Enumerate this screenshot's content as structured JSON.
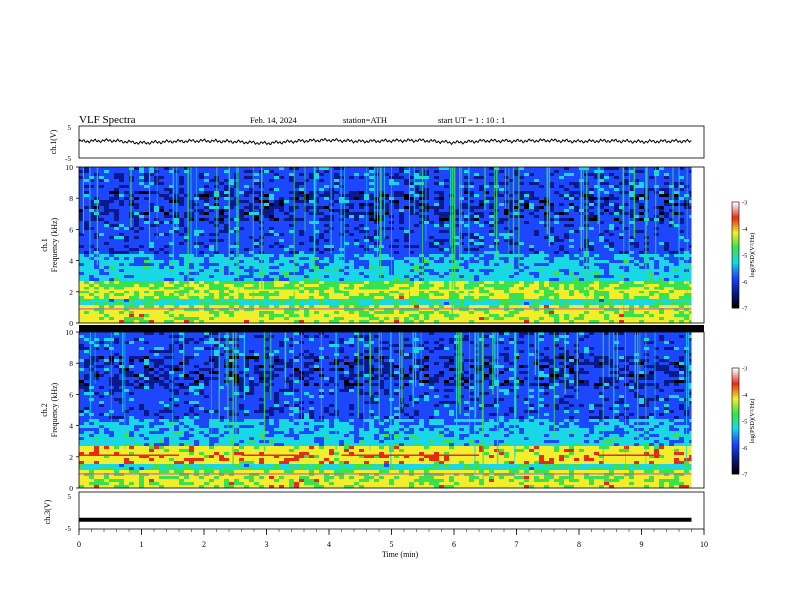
{
  "header": {
    "title": "VLF  Spectra",
    "date": "Feb. 14, 2024",
    "station": "station=ATH",
    "start": "start  UT  =   1  : 10 : 1"
  },
  "chart_data": [
    {
      "type": "line",
      "panel": "ch1-waveform",
      "ylabel": "ch.1(V)",
      "ylim": [
        -5,
        5
      ],
      "yticks": [
        "5",
        "-5"
      ],
      "xlim": [
        0,
        10
      ],
      "x": [
        0,
        0.5,
        1,
        1.5,
        2,
        2.5,
        3,
        3.5,
        4,
        4.5,
        5,
        5.5,
        6,
        6.5,
        7,
        7.5,
        8,
        8.5,
        9,
        9.5,
        9.8
      ],
      "values": [
        0.2,
        0.5,
        -0.3,
        0.2,
        0.4,
        0.1,
        -0.4,
        0.3,
        0.6,
        0.2,
        0.4,
        0.5,
        -0.2,
        0.4,
        0.3,
        0.5,
        0.2,
        0.4,
        0.1,
        0.3,
        0.2
      ]
    },
    {
      "type": "heatmap",
      "panel": "ch1-spectrogram",
      "title_side": "ch.1",
      "ylabel": "Frequency  (kHz)",
      "ylim": [
        0,
        10
      ],
      "yticks": [
        "0",
        "2",
        "4",
        "6",
        "8",
        "10"
      ],
      "xlim": [
        0,
        9.8
      ],
      "colorbar": {
        "label": "log(PSD)(V²/Hz)",
        "range": [
          -7,
          -3
        ],
        "ticks": [
          "-3",
          "-4",
          "-5",
          "-6",
          "-7"
        ]
      }
    },
    {
      "type": "heatmap",
      "panel": "ch2-spectrogram",
      "title_side": "ch.2",
      "ylabel": "Frequency  (kHz)",
      "ylim": [
        0,
        10
      ],
      "yticks": [
        "0",
        "2",
        "4",
        "6",
        "8",
        "10"
      ],
      "xlim": [
        0,
        9.8
      ],
      "colorbar": {
        "label": "log(PSD)(V²/Hz)",
        "range": [
          -7,
          -3
        ],
        "ticks": [
          "-3",
          "-4",
          "-5",
          "-6",
          "-7"
        ]
      }
    },
    {
      "type": "line",
      "panel": "ch3-waveform",
      "ylabel": "ch.3(V)",
      "ylim": [
        -5,
        5
      ],
      "yticks": [
        "5",
        "-5"
      ],
      "xlim": [
        0,
        10
      ],
      "x": [
        0,
        9.8
      ],
      "values": [
        -2.5,
        -2.5
      ]
    }
  ],
  "xaxis": {
    "label": "Time  (min)",
    "ticks": [
      "0",
      "1",
      "2",
      "3",
      "4",
      "5",
      "6",
      "7",
      "8",
      "9",
      "10"
    ]
  },
  "colors": {
    "black": "#000000",
    "deep_blue": "#0a1a8c",
    "blue": "#1d47ff",
    "cyan": "#19d8e6",
    "green": "#39e24c",
    "yellow": "#f2ee2b",
    "red": "#e52a1a"
  }
}
